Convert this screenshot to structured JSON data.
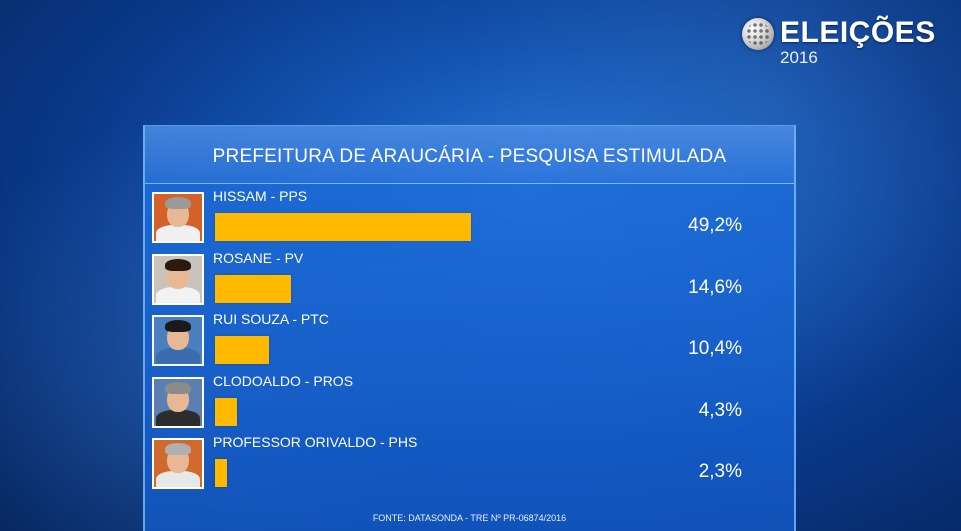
{
  "brand": {
    "title": "ELEIÇÕES",
    "year": "2016"
  },
  "chart_data": {
    "type": "bar",
    "title": "PREFEITURA DE ARAUCÁRIA - PESQUISA ESTIMULADA",
    "categories": [
      "HISSAM - PPS",
      "ROSANE - PV",
      "RUI SOUZA - PTC",
      "CLODOALDO - PROS",
      "PROFESSOR ORIVALDO - PHS"
    ],
    "values": [
      49.2,
      14.6,
      10.4,
      4.3,
      2.3
    ],
    "value_labels": [
      "49,2%",
      "14,6%",
      "10,4%",
      "4,3%",
      "2,3%"
    ],
    "bar_color": "#ffba00",
    "orientation": "horizontal",
    "source": "FONTE: DATASONDA - TRE Nº PR-06874/2016"
  },
  "photos": [
    {
      "bg": "#d4602a",
      "hair": "#9a9a9a",
      "body": "#f0f0f0"
    },
    {
      "bg": "#c9c3bb",
      "hair": "#2a1a12",
      "body": "#f2f2f2"
    },
    {
      "bg": "#4a7fc0",
      "hair": "#1a1a1a",
      "body": "#3a6db0"
    },
    {
      "bg": "#5a7fb0",
      "hair": "#8c8c8c",
      "body": "#2c2c2c"
    },
    {
      "bg": "#d06a2c",
      "hair": "#b0b0b0",
      "body": "#e8e8e8"
    }
  ]
}
